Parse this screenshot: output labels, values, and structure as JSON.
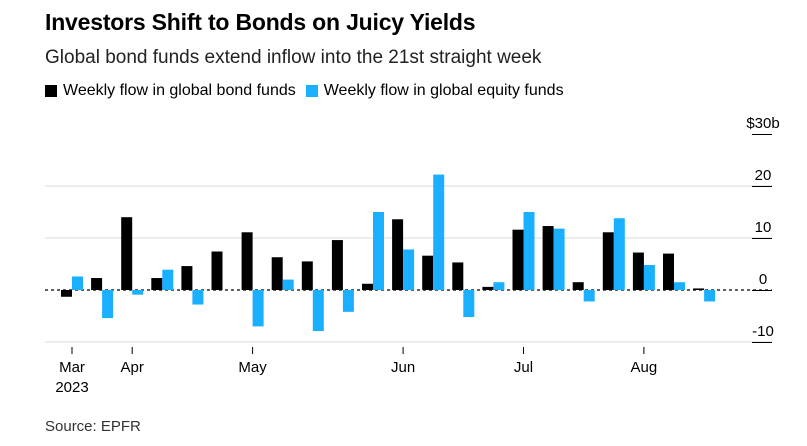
{
  "title": "Investors Shift to Bonds on Juicy Yields",
  "subtitle": "Global bond funds extend inflow into the 21st straight week",
  "source": "Source: EPFR",
  "chart_data": {
    "type": "bar",
    "series": [
      {
        "name": "Weekly flow in global bond funds",
        "color": "#000000",
        "values": [
          -1.3,
          2.3,
          14.0,
          2.3,
          4.6,
          7.4,
          11.1,
          6.3,
          5.5,
          9.6,
          1.2,
          13.6,
          6.6,
          5.3,
          0.6,
          11.6,
          12.3,
          1.5,
          11.1,
          7.2,
          7.0,
          0.3
        ]
      },
      {
        "name": "Weekly flow in global equity funds",
        "color": "#1ab0ff",
        "values": [
          2.6,
          -5.4,
          -0.9,
          3.9,
          -2.8,
          0.0,
          -7.0,
          2.0,
          -7.9,
          -4.2,
          15.0,
          7.8,
          22.2,
          -5.2,
          1.5,
          15.0,
          11.8,
          -2.2,
          13.8,
          4.8,
          1.5,
          -2.2
        ]
      }
    ],
    "y_ticks": [
      "$30b",
      "20",
      "10",
      "0",
      "-10"
    ],
    "y_tick_values": [
      30,
      20,
      10,
      0,
      -10
    ],
    "ylim": [
      -10,
      30
    ],
    "x_ticks": [
      {
        "label": "Mar",
        "sublabel": "2023",
        "week": 0
      },
      {
        "label": "Apr",
        "week": 2
      },
      {
        "label": "May",
        "week": 6
      },
      {
        "label": "Jun",
        "week": 11
      },
      {
        "label": "Jul",
        "week": 15
      },
      {
        "label": "Aug",
        "week": 19
      }
    ],
    "grid": "horizontal",
    "legend": "top-left"
  }
}
